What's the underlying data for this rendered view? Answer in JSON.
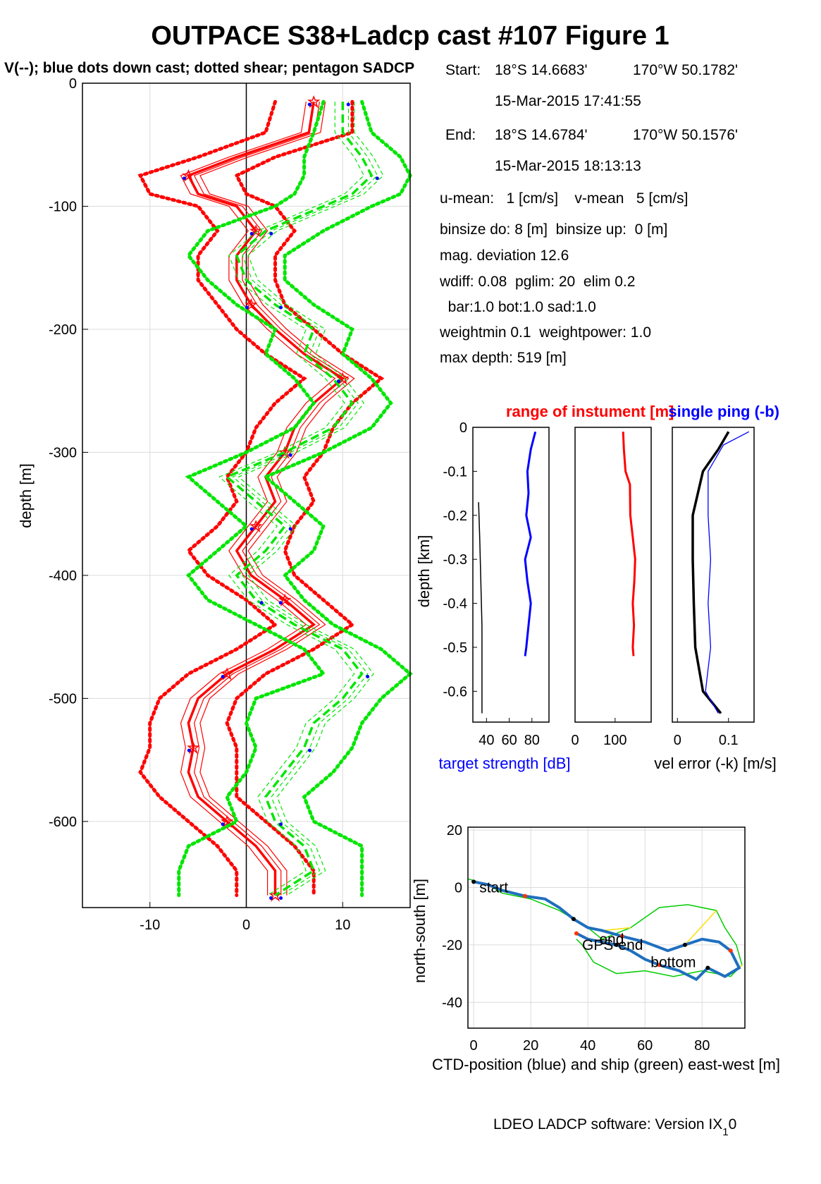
{
  "figure": {
    "title": "OUTPACE S38+Ladcp cast #107  Figure 1",
    "subtitle": "V(--); blue dots down cast; dotted shear; pentagon SADCP",
    "footer_text": "LDEO LADCP software: Version IX",
    "footer_sub": "1",
    "footer_tail": "0"
  },
  "info": {
    "start_label": "Start:",
    "start_lat": "18°S 14.6683'",
    "start_lon": "170°W 50.1782'",
    "start_time": "15-Mar-2015 17:41:55",
    "end_label": "End:",
    "end_lat": "18°S 14.6784'",
    "end_lon": "170°W 50.1576'",
    "end_time": "15-Mar-2015 18:13:13",
    "lines": [
      "u-mean:   1 [cm/s]    v-mean   5 [cm/s]",
      "binsize do: 8 [m]  binsize up:  0 [m]",
      "mag. deviation 12.6",
      "wdiff: 0.08  pglim: 20  elim 0.2",
      "  bar:1.0 bot:1.0 sad:1.0",
      "weightmin 0.1  weightpower: 1.0",
      "max depth: 519 [m]"
    ]
  },
  "chart_data": [
    {
      "id": "velocity-profile",
      "type": "line",
      "ylabel": "depth [m]",
      "xlim": [
        -17,
        17
      ],
      "ylim": [
        -670,
        0
      ],
      "xticks": [
        "-10",
        "0",
        "10"
      ],
      "yticks": [
        "0",
        "-100",
        "-200",
        "-300",
        "-400",
        "-500",
        "-600"
      ],
      "grid": true,
      "colors": {
        "u": "#ff0000",
        "v": "#00e600",
        "marker": "#0000ff"
      },
      "series": [
        {
          "name": "u (red)",
          "depth": [
            -15,
            -40,
            -60,
            -75,
            -90,
            -100,
            -120,
            -140,
            -160,
            -180,
            -200,
            -220,
            -240,
            -260,
            -280,
            -300,
            -320,
            -340,
            -360,
            -380,
            -400,
            -420,
            -440,
            -460,
            -480,
            -500,
            -520,
            -540,
            -560,
            -580,
            -600,
            -620,
            -640,
            -660
          ],
          "values": [
            7,
            6.5,
            -1,
            -6,
            -5,
            -1,
            1,
            -1,
            -1,
            0.5,
            3,
            6,
            10,
            7,
            5,
            4,
            2,
            3,
            1,
            -1,
            0.5,
            4,
            7,
            3,
            -2,
            -5,
            -6,
            -5.5,
            -6,
            -5,
            -2,
            1,
            3,
            3
          ],
          "lo": [
            3,
            2,
            -5,
            -11,
            -10,
            -5,
            -3,
            -5,
            -5,
            -3,
            -1,
            2,
            6,
            3,
            1,
            0,
            -2,
            -1,
            -3,
            -6,
            -4,
            0,
            3,
            -1,
            -6,
            -9,
            -10,
            -10,
            -11,
            -9,
            -6,
            -3,
            -1,
            -1
          ],
          "hi": [
            11,
            11,
            3,
            -1,
            0,
            3,
            5,
            3,
            3,
            4,
            7,
            10,
            14,
            11,
            9,
            8,
            6,
            7,
            5,
            4,
            5,
            8,
            11,
            7,
            2,
            -1,
            -2,
            -1,
            -1,
            -1,
            2,
            5,
            7,
            7
          ]
        },
        {
          "name": "v (green)",
          "depth": [
            -15,
            -40,
            -60,
            -75,
            -90,
            -100,
            -120,
            -140,
            -160,
            -180,
            -200,
            -220,
            -240,
            -260,
            -280,
            -300,
            -320,
            -340,
            -360,
            -380,
            -400,
            -420,
            -440,
            -460,
            -480,
            -500,
            -520,
            -540,
            -560,
            -580,
            -600,
            -620,
            -640,
            -660
          ],
          "values": [
            10,
            10,
            12,
            13,
            11,
            8,
            2,
            -1,
            0,
            3,
            7,
            6,
            9,
            11,
            9,
            4,
            -2,
            1,
            4,
            2,
            -1,
            1,
            5,
            10,
            12,
            10,
            7,
            6,
            4,
            2,
            3,
            6,
            7,
            3
          ],
          "lo": [
            8,
            7,
            6,
            6,
            5,
            3,
            -4,
            -6,
            -4,
            -1,
            3,
            2,
            5,
            7,
            5,
            0,
            -6,
            -3,
            0,
            -3,
            -6,
            -4,
            1,
            6,
            8,
            1,
            0,
            1,
            0,
            -2,
            -1,
            -6,
            -7,
            -7
          ],
          "hi": [
            12,
            13,
            16,
            17,
            16,
            13,
            8,
            4,
            4,
            7,
            11,
            10,
            13,
            15,
            13,
            8,
            2,
            5,
            8,
            7,
            4,
            6,
            9,
            14,
            17,
            14,
            12,
            11,
            9,
            6,
            7,
            12,
            12,
            12
          ]
        }
      ]
    },
    {
      "id": "target-strength",
      "type": "line",
      "xlabel": "target strength [dB]",
      "ylabel": "depth [km]",
      "xticks": [
        "40",
        "60",
        "80"
      ],
      "yticks": [
        "0",
        "-0.1",
        "-0.2",
        "-0.3",
        "-0.4",
        "-0.5",
        "-0.6"
      ],
      "xlim": [
        28,
        95
      ],
      "ylim": [
        -0.67,
        0
      ],
      "series": [
        {
          "name": "blue",
          "depth": [
            -0.01,
            -0.05,
            -0.1,
            -0.15,
            -0.2,
            -0.25,
            -0.3,
            -0.35,
            -0.4,
            -0.45,
            -0.5,
            -0.52
          ],
          "values": [
            83,
            79,
            76,
            77,
            75,
            79,
            74,
            76,
            79,
            77,
            75,
            74
          ]
        },
        {
          "name": "black",
          "depth": [
            -0.17,
            -0.25,
            -0.35,
            -0.45,
            -0.55,
            -0.65
          ],
          "values": [
            33,
            34,
            35,
            36,
            36,
            36
          ]
        }
      ]
    },
    {
      "id": "range-instrument",
      "type": "line",
      "title": "range of instument [m]",
      "xticks": [
        "0",
        "100"
      ],
      "xlim": [
        0,
        190
      ],
      "ylim": [
        -0.67,
        0
      ],
      "series": [
        {
          "name": "red",
          "depth": [
            -0.01,
            -0.05,
            -0.1,
            -0.13,
            -0.2,
            -0.25,
            -0.3,
            -0.35,
            -0.4,
            -0.45,
            -0.5,
            -0.52
          ],
          "values": [
            120,
            122,
            126,
            137,
            138,
            144,
            150,
            148,
            144,
            147,
            144,
            146
          ]
        }
      ]
    },
    {
      "id": "velocity-error",
      "type": "line",
      "title": "single ping (-b)",
      "xlabel": "vel error (-k) [m/s]",
      "xticks": [
        "0",
        "0.1"
      ],
      "xlim": [
        -0.01,
        0.15
      ],
      "ylim": [
        -0.67,
        0
      ],
      "series": [
        {
          "name": "black",
          "depth": [
            -0.01,
            -0.05,
            -0.1,
            -0.2,
            -0.3,
            -0.4,
            -0.5,
            -0.6,
            -0.65
          ],
          "values": [
            0.1,
            0.08,
            0.05,
            0.03,
            0.03,
            0.032,
            0.035,
            0.05,
            0.085
          ]
        },
        {
          "name": "blue",
          "depth": [
            -0.01,
            -0.04,
            -0.1,
            -0.2,
            -0.3,
            -0.4,
            -0.5,
            -0.6,
            -0.65
          ],
          "values": [
            0.14,
            0.09,
            0.06,
            0.06,
            0.065,
            0.06,
            0.065,
            0.055,
            0.08
          ]
        }
      ]
    },
    {
      "id": "track",
      "type": "line",
      "xlabel": "CTD-position (blue) and ship (green) east-west [m]",
      "ylabel": "north-south [m]",
      "xticks": [
        "0",
        "20",
        "40",
        "60",
        "80"
      ],
      "yticks": [
        "20",
        "0",
        "-20",
        "-40"
      ],
      "xlim": [
        -2,
        95
      ],
      "ylim": [
        -49,
        21
      ],
      "labels": [
        "start",
        "end",
        "GPS-end",
        "bottom"
      ],
      "label_positions": [
        [
          2,
          0
        ],
        [
          44,
          -18
        ],
        [
          38,
          -20
        ],
        [
          62,
          -26
        ]
      ],
      "series": [
        {
          "name": "CTD",
          "x": [
            0,
            5,
            10,
            18,
            25,
            30,
            35,
            40,
            45,
            52,
            60,
            68,
            74,
            80,
            86,
            90,
            93,
            88,
            82,
            78,
            72,
            65,
            60,
            55,
            50,
            45,
            40,
            36
          ],
          "y": [
            2,
            1,
            -1,
            -3,
            -4,
            -7,
            -11,
            -14,
            -15,
            -17,
            -19,
            -22,
            -20,
            -18,
            -19,
            -22,
            -28,
            -31,
            -28,
            -32,
            -29,
            -27,
            -25,
            -22,
            -20,
            -19,
            -18,
            -16
          ]
        },
        {
          "name": "ship",
          "x": [
            -2,
            5,
            10,
            20,
            30,
            40,
            45,
            55,
            65,
            75,
            85,
            88,
            92,
            94,
            90,
            80,
            70,
            60,
            50,
            42,
            38,
            36
          ],
          "y": [
            3,
            1,
            -2,
            -4,
            -8,
            -14,
            -18,
            -14,
            -7,
            -6,
            -8,
            -14,
            -20,
            -27,
            -31,
            -29,
            -31,
            -29,
            -30,
            -26,
            -20,
            -18
          ]
        }
      ]
    }
  ]
}
